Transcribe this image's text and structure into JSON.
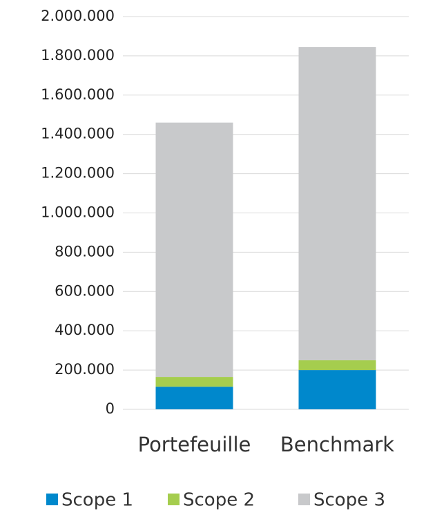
{
  "chart_data": {
    "type": "stacked_bar",
    "categories": [
      "Portefeuille",
      "Benchmark"
    ],
    "series": [
      {
        "name": "Scope 1",
        "color": "#0088cc",
        "values": [
          115000,
          200000
        ]
      },
      {
        "name": "Scope 2",
        "color": "#a5cd4e",
        "values": [
          50000,
          50000
        ]
      },
      {
        "name": "Scope 3",
        "color": "#c8c9cb",
        "values": [
          1295000,
          1595000
        ]
      }
    ],
    "ylim": [
      0,
      2000000
    ],
    "yticks": [
      0,
      {
        "value": 200000,
        "label": "200.000"
      },
      {
        "value": 400000,
        "label": "400.000"
      },
      {
        "value": 600000,
        "label": "600.000"
      },
      {
        "value": 800000,
        "label": "800.000"
      },
      {
        "value": 1000000,
        "label": "1.000.000"
      },
      {
        "value": 1200000,
        "label": "1.200.000"
      },
      {
        "value": 1400000,
        "label": "1.400.000"
      },
      {
        "value": 1600000,
        "label": "1.600.000"
      },
      {
        "value": 1800000,
        "label": "1.800.000"
      },
      {
        "value": 2000000,
        "label": "2.000.000"
      }
    ],
    "grid": true,
    "legend": "bottom"
  }
}
